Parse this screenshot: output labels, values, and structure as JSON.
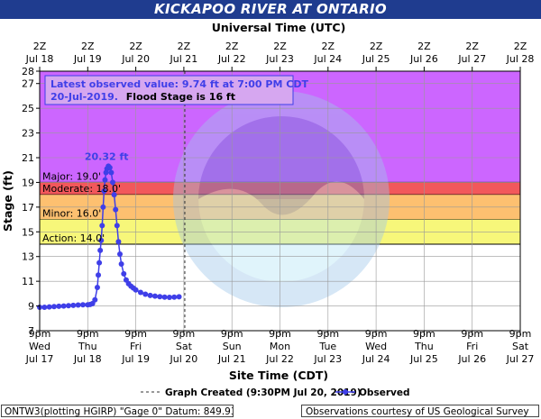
{
  "title": "KICKAPOO RIVER AT ONTARIO",
  "top_axis_title": "Universal Time (UTC)",
  "bottom_axis_title": "Site Time (CDT)",
  "colors": {
    "major_band": "#cc66ff",
    "moderate_band": "#f2585b",
    "minor_band": "#fdc070",
    "action_band": "#f7f77a",
    "series": "#3f3fe8",
    "title_bar": "#1f3c8f"
  },
  "info_box": {
    "line1": "Latest observed value: 9.74 ft at 7:00 PM CDT",
    "line2_date": "20-Jul-2019.",
    "line2_flood": "Flood Stage is 16 ft"
  },
  "footer": {
    "left": "ONTW3(plotting HGIRP) \"Gage 0\" Datum: 849.93'",
    "right": "Observations courtesy of US Geological Survey"
  },
  "chart_data": {
    "type": "line",
    "ylabel": "Stage (ft)",
    "ylim": [
      7,
      28
    ],
    "xlim": [
      0,
      10
    ],
    "y_ticks": [
      7,
      9,
      11,
      13,
      15,
      17,
      19,
      21,
      23,
      25,
      27,
      28
    ],
    "top_ticks": [
      {
        "hour": "2Z",
        "date": "Jul 18"
      },
      {
        "hour": "2Z",
        "date": "Jul 19"
      },
      {
        "hour": "2Z",
        "date": "Jul 20"
      },
      {
        "hour": "2Z",
        "date": "Jul 21"
      },
      {
        "hour": "2Z",
        "date": "Jul 22"
      },
      {
        "hour": "2Z",
        "date": "Jul 23"
      },
      {
        "hour": "2Z",
        "date": "Jul 24"
      },
      {
        "hour": "2Z",
        "date": "Jul 25"
      },
      {
        "hour": "2Z",
        "date": "Jul 26"
      },
      {
        "hour": "2Z",
        "date": "Jul 27"
      },
      {
        "hour": "2Z",
        "date": "Jul 28"
      }
    ],
    "bottom_ticks": [
      {
        "time": "9pm",
        "day": "Wed",
        "date": "Jul 17"
      },
      {
        "time": "9pm",
        "day": "Thu",
        "date": "Jul 18"
      },
      {
        "time": "9pm",
        "day": "Fri",
        "date": "Jul 19"
      },
      {
        "time": "9pm",
        "day": "Sat",
        "date": "Jul 20"
      },
      {
        "time": "9pm",
        "day": "Sun",
        "date": "Jul 21"
      },
      {
        "time": "9pm",
        "day": "Mon",
        "date": "Jul 22"
      },
      {
        "time": "9pm",
        "day": "Tue",
        "date": "Jul 23"
      },
      {
        "time": "9pm",
        "day": "Wed",
        "date": "Jul 24"
      },
      {
        "time": "9pm",
        "day": "Thu",
        "date": "Jul 25"
      },
      {
        "time": "9pm",
        "day": "Fri",
        "date": "Jul 26"
      },
      {
        "time": "9pm",
        "day": "Sat",
        "date": "Jul 27"
      }
    ],
    "flood_categories": [
      {
        "label": "Major: 19.0'",
        "min": 19,
        "max": 28,
        "color": "#cc66ff"
      },
      {
        "label": "Moderate: 18.0'",
        "min": 18,
        "max": 19,
        "color": "#f2585b"
      },
      {
        "label": "Minor: 16.0'",
        "min": 16,
        "max": 18,
        "color": "#fdc070"
      },
      {
        "label": "Action: 14.0'",
        "min": 14,
        "max": 16,
        "color": "#f7f77a"
      }
    ],
    "peak_label": "20.32 ft",
    "peak": {
      "x": 1.43,
      "y": 20.32
    },
    "graph_created_x": 3.02,
    "series": [
      {
        "name": "Observed",
        "x": [
          0.0,
          0.1,
          0.2,
          0.3,
          0.4,
          0.5,
          0.6,
          0.7,
          0.8,
          0.9,
          1.0,
          1.05,
          1.1,
          1.15,
          1.2,
          1.22,
          1.24,
          1.26,
          1.28,
          1.3,
          1.32,
          1.34,
          1.36,
          1.38,
          1.4,
          1.43,
          1.46,
          1.49,
          1.52,
          1.55,
          1.58,
          1.61,
          1.64,
          1.67,
          1.7,
          1.75,
          1.8,
          1.85,
          1.9,
          1.95,
          2.0,
          2.1,
          2.2,
          2.3,
          2.4,
          2.5,
          2.6,
          2.7,
          2.8,
          2.9
        ],
        "y": [
          8.9,
          8.9,
          8.92,
          8.95,
          8.98,
          9.0,
          9.02,
          9.05,
          9.08,
          9.1,
          9.1,
          9.12,
          9.2,
          9.5,
          10.5,
          11.5,
          12.5,
          13.5,
          14.3,
          15.5,
          17.0,
          18.3,
          19.2,
          19.8,
          20.1,
          20.32,
          20.2,
          19.8,
          19.0,
          18.0,
          16.8,
          15.5,
          14.2,
          13.2,
          12.4,
          11.6,
          11.1,
          10.8,
          10.6,
          10.45,
          10.3,
          10.1,
          9.95,
          9.85,
          9.8,
          9.75,
          9.72,
          9.7,
          9.72,
          9.74
        ]
      }
    ],
    "legend": {
      "graph_created_label": "Graph Created (9:30PM Jul 20, 2019)",
      "observed_label": "Observed"
    }
  }
}
